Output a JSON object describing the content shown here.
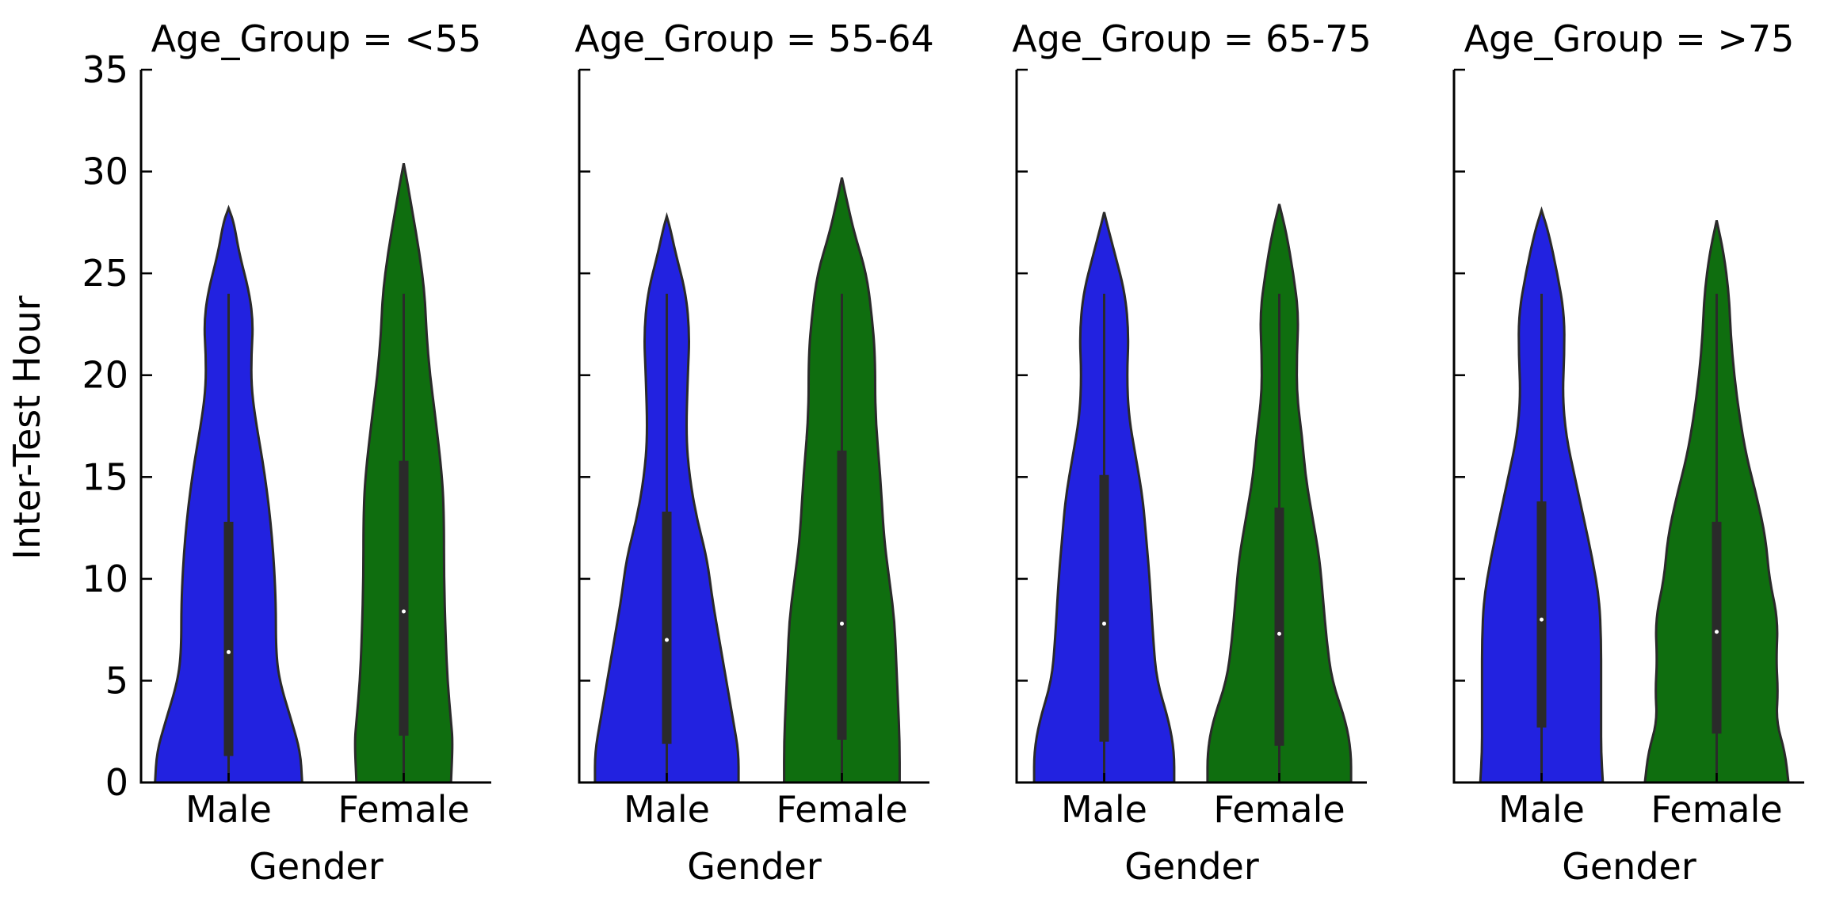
{
  "chart_data": {
    "type": "violin",
    "ylabel": "Inter-Test Hour",
    "xlabel": "Gender",
    "ylim": [
      0,
      35
    ],
    "yticks": [
      0,
      5,
      10,
      15,
      20,
      25,
      30,
      35
    ],
    "categories": [
      "Male",
      "Female"
    ],
    "colors": {
      "Male": "#2222e0",
      "Female": "#0f6e0f"
    },
    "panels": [
      {
        "title": "Age_Group = <55",
        "violins": [
          {
            "category": "Male",
            "max": 28.2,
            "median": 6.4,
            "q1": 1.3,
            "q3": 12.8,
            "whisker_low": 0,
            "whisker_high": 24,
            "profile": [
              [
                0,
                0.42
              ],
              [
                1.5,
                0.41
              ],
              [
                3,
                0.36
              ],
              [
                5,
                0.29
              ],
              [
                6.5,
                0.27
              ],
              [
                9,
                0.27
              ],
              [
                12,
                0.25
              ],
              [
                15,
                0.21
              ],
              [
                18,
                0.15
              ],
              [
                19.5,
                0.13
              ],
              [
                21,
                0.13
              ],
              [
                22.5,
                0.14
              ],
              [
                24,
                0.12
              ],
              [
                26,
                0.06
              ],
              [
                27.5,
                0.03
              ],
              [
                28.2,
                0
              ]
            ]
          },
          {
            "category": "Female",
            "max": 30.4,
            "median": 8.4,
            "q1": 2.3,
            "q3": 15.8,
            "whisker_low": 0,
            "whisker_high": 24,
            "profile": [
              [
                0,
                0.27
              ],
              [
                2,
                0.28
              ],
              [
                3,
                0.27
              ],
              [
                5,
                0.25
              ],
              [
                7,
                0.24
              ],
              [
                10,
                0.23
              ],
              [
                13,
                0.23
              ],
              [
                15,
                0.22
              ],
              [
                18,
                0.18
              ],
              [
                20,
                0.15
              ],
              [
                22,
                0.13
              ],
              [
                24,
                0.12
              ],
              [
                26,
                0.09
              ],
              [
                28,
                0.05
              ],
              [
                29.5,
                0.02
              ],
              [
                30.4,
                0
              ]
            ]
          }
        ]
      },
      {
        "title": "Age_Group = 55-64",
        "violins": [
          {
            "category": "Male",
            "max": 27.8,
            "median": 7.0,
            "q1": 1.9,
            "q3": 13.3,
            "whisker_low": 0,
            "whisker_high": 24,
            "profile": [
              [
                0,
                0.41
              ],
              [
                1.5,
                0.41
              ],
              [
                3,
                0.38
              ],
              [
                5,
                0.34
              ],
              [
                7,
                0.3
              ],
              [
                9,
                0.26
              ],
              [
                11,
                0.23
              ],
              [
                13,
                0.17
              ],
              [
                15,
                0.13
              ],
              [
                17,
                0.11
              ],
              [
                20,
                0.12
              ],
              [
                22,
                0.13
              ],
              [
                24,
                0.11
              ],
              [
                26,
                0.05
              ],
              [
                27.2,
                0.02
              ],
              [
                27.8,
                0
              ]
            ]
          },
          {
            "category": "Female",
            "max": 29.7,
            "median": 7.8,
            "q1": 2.1,
            "q3": 16.3,
            "whisker_low": 0,
            "whisker_high": 24,
            "profile": [
              [
                0,
                0.33
              ],
              [
                2,
                0.33
              ],
              [
                4,
                0.32
              ],
              [
                6,
                0.31
              ],
              [
                8,
                0.3
              ],
              [
                10,
                0.27
              ],
              [
                12,
                0.24
              ],
              [
                15,
                0.22
              ],
              [
                18,
                0.19
              ],
              [
                21,
                0.19
              ],
              [
                23,
                0.17
              ],
              [
                25,
                0.14
              ],
              [
                27,
                0.07
              ],
              [
                28.5,
                0.03
              ],
              [
                29.7,
                0
              ]
            ]
          }
        ]
      },
      {
        "title": "Age_Group = 65-75",
        "violins": [
          {
            "category": "Male",
            "max": 28.0,
            "median": 7.8,
            "q1": 2.0,
            "q3": 15.1,
            "whisker_low": 0,
            "whisker_high": 24,
            "profile": [
              [
                0,
                0.4
              ],
              [
                1.5,
                0.4
              ],
              [
                3,
                0.37
              ],
              [
                5,
                0.3
              ],
              [
                7,
                0.28
              ],
              [
                10,
                0.26
              ],
              [
                12,
                0.24
              ],
              [
                14,
                0.22
              ],
              [
                16,
                0.18
              ],
              [
                18,
                0.14
              ],
              [
                20,
                0.13
              ],
              [
                22,
                0.14
              ],
              [
                24,
                0.12
              ],
              [
                26,
                0.06
              ],
              [
                27.3,
                0.02
              ],
              [
                28,
                0
              ]
            ]
          },
          {
            "category": "Female",
            "max": 28.4,
            "median": 7.3,
            "q1": 1.8,
            "q3": 13.5,
            "whisker_low": 0,
            "whisker_high": 24,
            "profile": [
              [
                0,
                0.41
              ],
              [
                1.5,
                0.41
              ],
              [
                3,
                0.38
              ],
              [
                5,
                0.3
              ],
              [
                7,
                0.27
              ],
              [
                9,
                0.25
              ],
              [
                11,
                0.23
              ],
              [
                13,
                0.19
              ],
              [
                15,
                0.15
              ],
              [
                17,
                0.13
              ],
              [
                19,
                0.1
              ],
              [
                21,
                0.1
              ],
              [
                23,
                0.11
              ],
              [
                25,
                0.08
              ],
              [
                27,
                0.04
              ],
              [
                28.4,
                0
              ]
            ]
          }
        ]
      },
      {
        "title": "Age_Group = >75",
        "violins": [
          {
            "category": "Male",
            "max": 28.1,
            "median": 8.0,
            "q1": 2.7,
            "q3": 13.8,
            "whisker_low": 0,
            "whisker_high": 24,
            "profile": [
              [
                0,
                0.35
              ],
              [
                1.5,
                0.34
              ],
              [
                3,
                0.34
              ],
              [
                5,
                0.34
              ],
              [
                7,
                0.34
              ],
              [
                9,
                0.33
              ],
              [
                11,
                0.29
              ],
              [
                13,
                0.24
              ],
              [
                15,
                0.19
              ],
              [
                17,
                0.14
              ],
              [
                19,
                0.12
              ],
              [
                21,
                0.13
              ],
              [
                23,
                0.13
              ],
              [
                25,
                0.09
              ],
              [
                27,
                0.04
              ],
              [
                28.1,
                0
              ]
            ]
          },
          {
            "category": "Female",
            "max": 27.6,
            "median": 7.4,
            "q1": 2.4,
            "q3": 12.8,
            "whisker_low": 0,
            "whisker_high": 24,
            "profile": [
              [
                0,
                0.41
              ],
              [
                1.5,
                0.39
              ],
              [
                3,
                0.34
              ],
              [
                4.5,
                0.35
              ],
              [
                6,
                0.34
              ],
              [
                8,
                0.35
              ],
              [
                10,
                0.3
              ],
              [
                12,
                0.28
              ],
              [
                14,
                0.23
              ],
              [
                16,
                0.17
              ],
              [
                18,
                0.13
              ],
              [
                20,
                0.1
              ],
              [
                22,
                0.08
              ],
              [
                24,
                0.07
              ],
              [
                26,
                0.04
              ],
              [
                27.6,
                0
              ]
            ]
          }
        ]
      }
    ]
  }
}
